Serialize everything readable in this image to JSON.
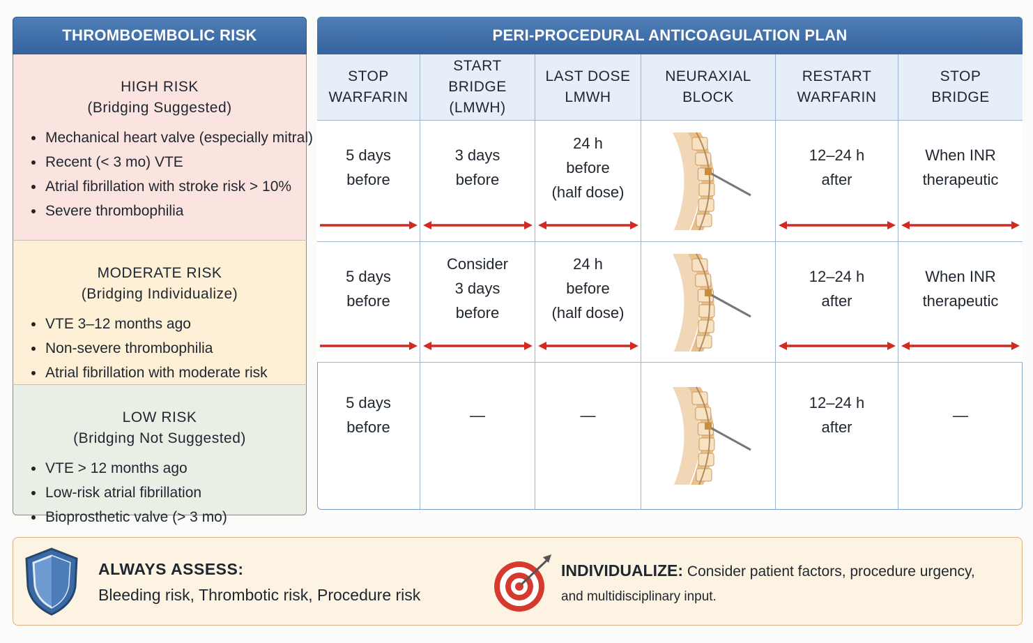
{
  "risk_panel": {
    "title": "THROMBOEMBOLIC RISK",
    "groups": [
      {
        "level": "HIGH RISK",
        "note": "(Bridging Suggested)",
        "items": [
          "Mechanical heart valve (especially mitral)",
          "Recent (< 3 mo) VTE",
          "Atrial fibrillation with stroke risk > 10%",
          "Severe thrombophilia"
        ]
      },
      {
        "level": "MODERATE RISK",
        "note": "(Bridging Individualize)",
        "items": [
          "VTE 3–12 months ago",
          "Non-severe thrombophilia",
          "Atrial fibrillation with moderate risk"
        ]
      },
      {
        "level": "LOW RISK",
        "note": "(Bridging Not Suggested)",
        "items": [
          "VTE > 12 months ago",
          "Low-risk atrial fibrillation",
          "Bioprosthetic valve (> 3 mo)"
        ]
      }
    ]
  },
  "plan_panel": {
    "title": "PERI-PROCEDURAL ANTICOAGULATION PLAN",
    "columns": [
      [
        "STOP",
        "WARFARIN"
      ],
      [
        "START",
        "BRIDGE (LMWH)"
      ],
      [
        "LAST DOSE",
        "LMWH"
      ],
      [
        "NEURAXIAL",
        "BLOCK"
      ],
      [
        "RESTART",
        "WARFARIN"
      ],
      [
        "STOP",
        "BRIDGE"
      ]
    ],
    "rows": [
      {
        "arrows": true,
        "cells": [
          [
            "5 days",
            "before"
          ],
          [
            "3 days",
            "before"
          ],
          [
            "24 h",
            "before",
            "(half dose)"
          ],
          null,
          [
            "12–24 h",
            "after"
          ],
          [
            "When INR",
            "therapeutic"
          ]
        ]
      },
      {
        "arrows": true,
        "cells": [
          [
            "5 days",
            "before"
          ],
          [
            "Consider",
            "3 days",
            "before"
          ],
          [
            "24 h",
            "before",
            "(half dose)"
          ],
          null,
          [
            "12–24 h",
            "after"
          ],
          [
            "When INR",
            "therapeutic"
          ]
        ]
      },
      {
        "arrows": false,
        "cells": [
          [
            "5 days",
            "before"
          ],
          [
            "—"
          ],
          [
            "—"
          ],
          null,
          [
            "12–24 h",
            "after"
          ],
          [
            "—"
          ]
        ]
      }
    ]
  },
  "footer": {
    "assess_title": "ALWAYS ASSESS:",
    "assess_text": "Bleeding risk, Thrombotic risk, Procedure risk",
    "individualize_title": "INDIVIDUALIZE:",
    "individualize_text": "Consider patient factors, procedure urgency,",
    "individualize_text2": "and multidisciplinary input."
  }
}
